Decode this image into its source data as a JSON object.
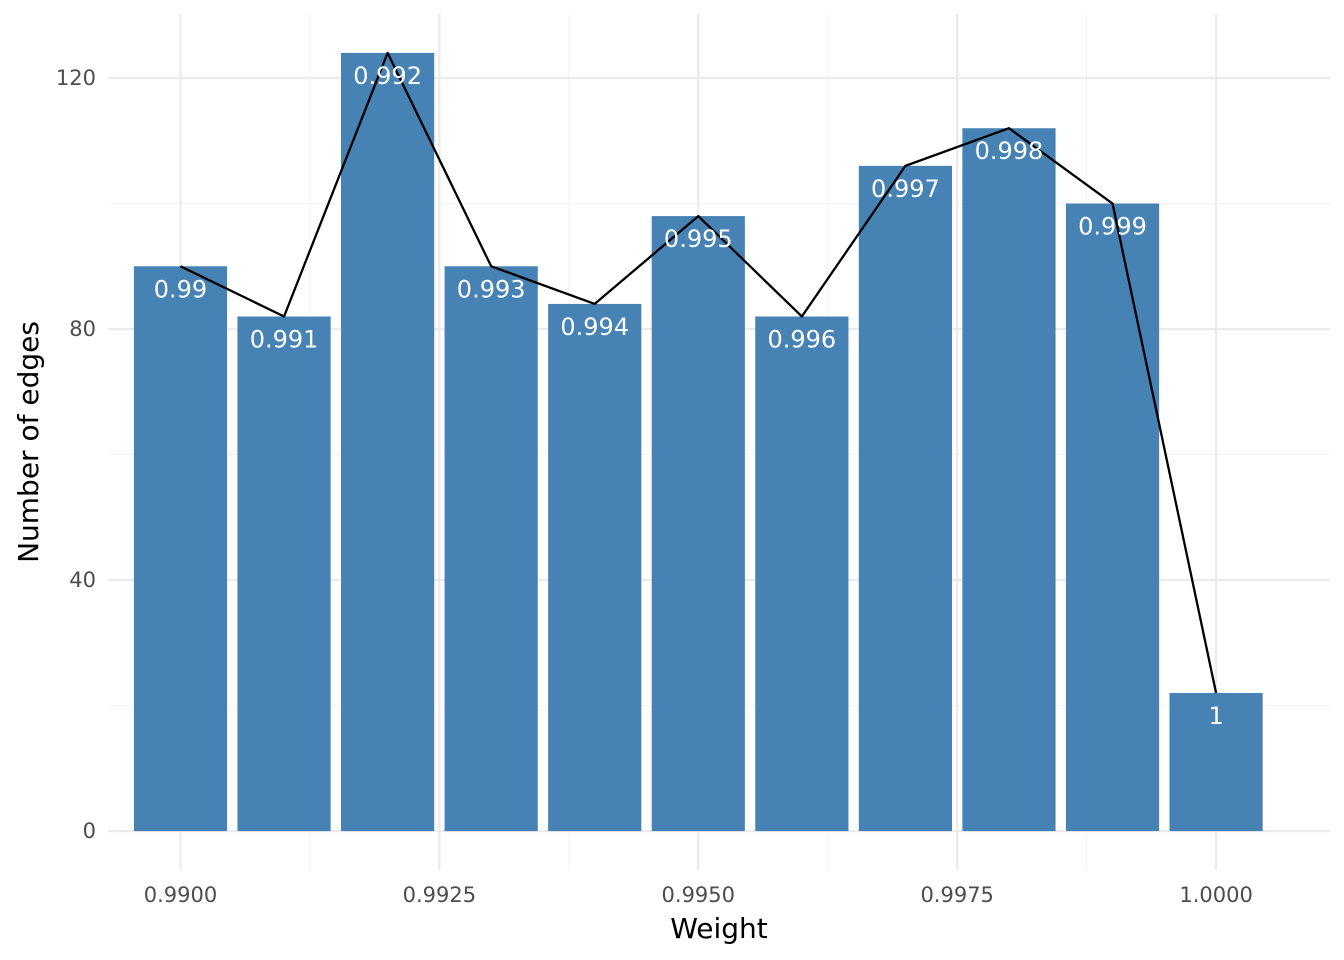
{
  "chart_data": {
    "type": "bar",
    "x": [
      0.99,
      0.991,
      0.992,
      0.993,
      0.994,
      0.995,
      0.996,
      0.997,
      0.998,
      0.999,
      1.0
    ],
    "values": [
      90,
      82,
      124,
      90,
      84,
      98,
      82,
      106,
      112,
      100,
      22
    ],
    "data_labels": [
      "0.99",
      "0.991",
      "0.992",
      "0.993",
      "0.994",
      "0.995",
      "0.996",
      "0.997",
      "0.998",
      "0.999",
      "1"
    ],
    "overlay_line": {
      "type": "line",
      "values": [
        90,
        82,
        124,
        90,
        84,
        98,
        82,
        106,
        112,
        100,
        22
      ],
      "color": "#000000"
    },
    "xlabel": "Weight",
    "ylabel": "Number of edges",
    "xlim": [
      0.9893,
      1.0011
    ],
    "ylim": [
      -6.2,
      130.2
    ],
    "x_ticks": [
      0.99,
      0.9925,
      0.995,
      0.9975,
      1.0
    ],
    "x_tick_labels": [
      "0.9900",
      "0.9925",
      "0.9950",
      "0.9975",
      "1.0000"
    ],
    "y_ticks": [
      0,
      40,
      80,
      120
    ],
    "y_tick_labels": [
      "0",
      "40",
      "80",
      "120"
    ],
    "bar_width": 0.0009,
    "grid": true,
    "legend": "none",
    "colors": {
      "bar": "#4682b4",
      "line": "#000000",
      "bar_label": "#ffffff",
      "grid": "#ebebeb"
    }
  }
}
